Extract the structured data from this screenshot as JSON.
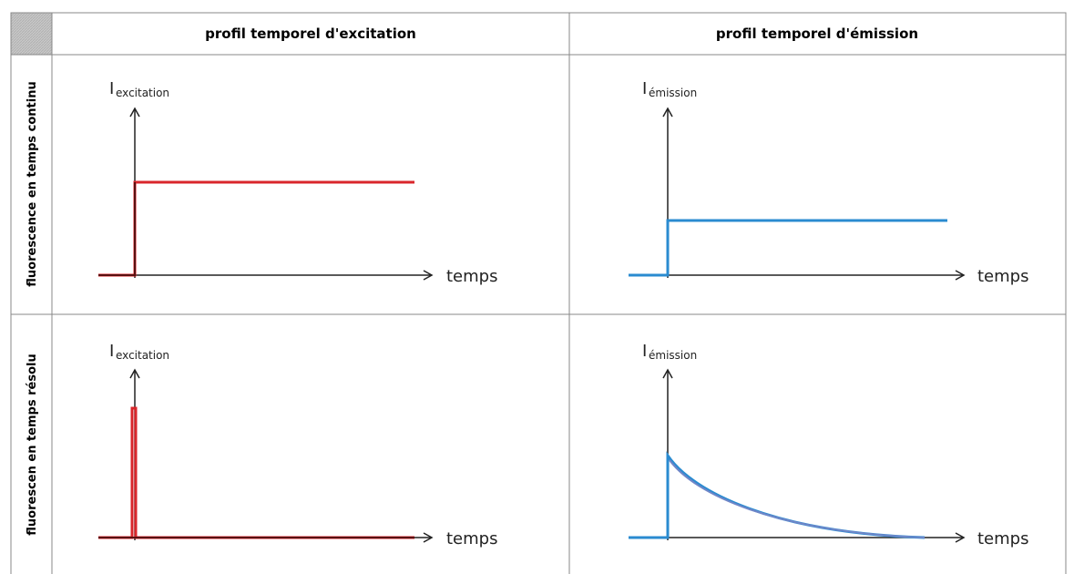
{
  "table": {
    "header": [
      "profil temporel d'excitation",
      "profil temporel d'émission"
    ],
    "rows": [
      {
        "label": "fluorescence en temps continu",
        "cells": [
          {
            "axis_main": "I",
            "axis_sub": "excitation",
            "x_label": "temps"
          },
          {
            "axis_main": "I",
            "axis_sub": "émission",
            "x_label": "temps"
          }
        ]
      },
      {
        "label": "fluorescen en temps résolu",
        "cells": [
          {
            "axis_main": "I",
            "axis_sub": "excitation",
            "x_label": "temps"
          },
          {
            "axis_main": "I",
            "axis_sub": "émission",
            "x_label": "temps"
          }
        ]
      }
    ]
  }
}
